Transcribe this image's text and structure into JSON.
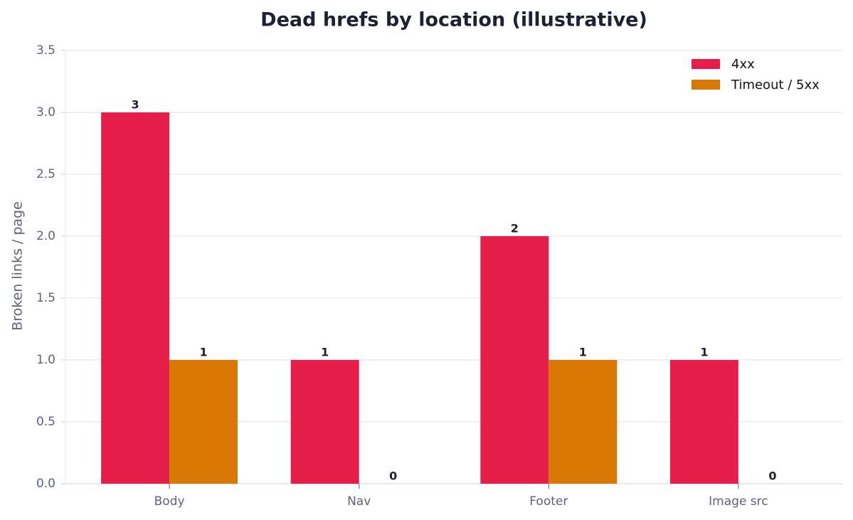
{
  "chart_data": {
    "type": "bar",
    "title": "Dead hrefs by location (illustrative)",
    "y_label": "Broken links / page",
    "categories": [
      "Body",
      "Nav",
      "Footer",
      "Image src"
    ],
    "series": [
      {
        "name": "4xx",
        "color": "#e31f4a",
        "values": [
          3,
          1,
          2,
          1
        ]
      },
      {
        "name": "Timeout / 5xx",
        "color": "#d97706",
        "values": [
          1,
          0,
          1,
          0
        ]
      }
    ],
    "ylim": [
      0,
      3.5
    ],
    "yticks": [
      {
        "value": 0,
        "label": "0.0"
      },
      0.5,
      {
        "value": 1,
        "label": "1.0"
      },
      1.5,
      {
        "value": 2,
        "label": "2.0"
      },
      2.5,
      {
        "value": 3,
        "label": "3.0"
      },
      3.5
    ],
    "grid": true,
    "legend": "upper right"
  }
}
